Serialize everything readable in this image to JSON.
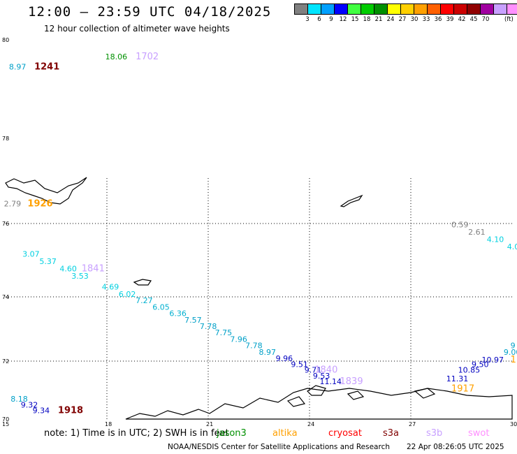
{
  "header": {
    "title": "12:00 — 23:59 UTC 04/18/2025",
    "subtitle": "12 hour collection of altimeter wave heights"
  },
  "legend": {
    "colors": [
      "#808080",
      "#00e5ff",
      "#00a0ff",
      "#0000ff",
      "#40ff40",
      "#00cc00",
      "#009000",
      "#ffff00",
      "#ffd000",
      "#ffa000",
      "#ff6000",
      "#ff0000",
      "#cc0000",
      "#900000",
      "#a000a0",
      "#c8a0ff",
      "#ff90ff",
      "#000000"
    ],
    "labels": [
      "3",
      "6",
      "9",
      "12",
      "15",
      "18",
      "21",
      "24",
      "27",
      "30",
      "33",
      "36",
      "39",
      "42",
      "45",
      "70"
    ],
    "unit": "(ft)"
  },
  "map": {
    "lat_labels": [
      "80",
      "78",
      "76",
      "74",
      "72",
      "70"
    ],
    "lon_labels": [
      "15",
      "18",
      "21",
      "24",
      "27",
      "30"
    ],
    "observations": [
      {
        "text": "8.97",
        "color": "#00a0c8",
        "lon": 15.1,
        "lat": 79.4,
        "size": 11
      },
      {
        "text": "1241",
        "color": "#800000",
        "lon": 15.85,
        "lat": 79.4,
        "size": 13,
        "bold": true
      },
      {
        "text": "18.06",
        "color": "#009000",
        "lon": 17.95,
        "lat": 79.6,
        "size": 11
      },
      {
        "text": "1702",
        "color": "#c8a0ff",
        "lon": 18.85,
        "lat": 79.6,
        "size": 13
      },
      {
        "text": "2.79",
        "color": "#808080",
        "lon": 14.95,
        "lat": 76.4,
        "size": 11
      },
      {
        "text": "1926",
        "color": "#ffa000",
        "lon": 15.65,
        "lat": 76.4,
        "size": 13,
        "bold": true
      },
      {
        "text": "0.59",
        "color": "#808080",
        "lon": 28.2,
        "lat": 75.9,
        "size": 11
      },
      {
        "text": "2.61",
        "color": "#808080",
        "lon": 28.7,
        "lat": 75.7,
        "size": 11
      },
      {
        "text": "4.10",
        "color": "#00d0e0",
        "lon": 29.25,
        "lat": 75.5,
        "size": 11
      },
      {
        "text": "4.0",
        "color": "#00d0e0",
        "lon": 29.85,
        "lat": 75.3,
        "size": 11
      },
      {
        "text": "3.07",
        "color": "#00d0e0",
        "lon": 15.5,
        "lat": 75.1,
        "size": 11
      },
      {
        "text": "5.37",
        "color": "#00d0e0",
        "lon": 16.0,
        "lat": 74.9,
        "size": 11
      },
      {
        "text": "4.60",
        "color": "#00d0e0",
        "lon": 16.6,
        "lat": 74.7,
        "size": 11
      },
      {
        "text": "1841",
        "color": "#c8a0ff",
        "lon": 17.25,
        "lat": 74.7,
        "size": 13
      },
      {
        "text": "3.53",
        "color": "#00d0e0",
        "lon": 16.95,
        "lat": 74.5,
        "size": 11
      },
      {
        "text": "4.69",
        "color": "#00d0e0",
        "lon": 17.85,
        "lat": 74.2,
        "size": 11
      },
      {
        "text": "6.02",
        "color": "#00d0e0",
        "lon": 18.35,
        "lat": 74.0,
        "size": 11
      },
      {
        "text": "7.27",
        "color": "#00b0d0",
        "lon": 18.85,
        "lat": 73.8,
        "size": 11
      },
      {
        "text": "6.05",
        "color": "#00b0d0",
        "lon": 19.35,
        "lat": 73.6,
        "size": 11
      },
      {
        "text": "6.36",
        "color": "#00b0d0",
        "lon": 19.85,
        "lat": 73.4,
        "size": 11
      },
      {
        "text": "7.57",
        "color": "#00a0c8",
        "lon": 20.3,
        "lat": 73.2,
        "size": 11
      },
      {
        "text": "7.78",
        "color": "#00a0c8",
        "lon": 20.75,
        "lat": 73.0,
        "size": 11
      },
      {
        "text": "7.75",
        "color": "#00a0c8",
        "lon": 21.2,
        "lat": 72.8,
        "size": 11
      },
      {
        "text": "7.96",
        "color": "#00a0c8",
        "lon": 21.65,
        "lat": 72.6,
        "size": 11
      },
      {
        "text": "7.78",
        "color": "#00a0c8",
        "lon": 22.1,
        "lat": 72.4,
        "size": 11
      },
      {
        "text": "8.97",
        "color": "#00a0c8",
        "lon": 22.5,
        "lat": 72.2,
        "size": 11
      },
      {
        "text": "9.96",
        "color": "#0000c0",
        "lon": 23.0,
        "lat": 72.0,
        "size": 11
      },
      {
        "text": "9.51",
        "color": "#0000c0",
        "lon": 23.45,
        "lat": 71.8,
        "size": 11
      },
      {
        "text": "9.71",
        "color": "#0000c0",
        "lon": 23.85,
        "lat": 71.6,
        "size": 11
      },
      {
        "text": "1840",
        "color": "#c8a0ff",
        "lon": 24.15,
        "lat": 71.6,
        "size": 13
      },
      {
        "text": "9.53",
        "color": "#0000c0",
        "lon": 24.1,
        "lat": 71.4,
        "size": 11
      },
      {
        "text": "11.14",
        "color": "#0000c0",
        "lon": 24.3,
        "lat": 71.2,
        "size": 11
      },
      {
        "text": "1839",
        "color": "#c8a0ff",
        "lon": 24.9,
        "lat": 71.2,
        "size": 13
      },
      {
        "text": "9",
        "color": "#00a0c8",
        "lon": 29.95,
        "lat": 72.4,
        "size": 11
      },
      {
        "text": "9.00",
        "color": "#00a0c8",
        "lon": 29.75,
        "lat": 72.2,
        "size": 11
      },
      {
        "text": "1",
        "color": "#ffa000",
        "lon": 29.95,
        "lat": 71.95,
        "size": 13
      },
      {
        "text": "10.97",
        "color": "#0000c0",
        "lon": 29.1,
        "lat": 71.95,
        "size": 11
      },
      {
        "text": "9.50",
        "color": "#0000c0",
        "lon": 28.8,
        "lat": 71.8,
        "size": 11
      },
      {
        "text": "10.85",
        "color": "#0000c0",
        "lon": 28.4,
        "lat": 71.6,
        "size": 11
      },
      {
        "text": "11.31",
        "color": "#0000c0",
        "lon": 28.05,
        "lat": 71.3,
        "size": 11
      },
      {
        "text": "1917",
        "color": "#ffa000",
        "lon": 28.2,
        "lat": 70.95,
        "size": 13
      },
      {
        "text": "8.18",
        "color": "#00a0c8",
        "lon": 15.15,
        "lat": 70.6,
        "size": 11
      },
      {
        "text": "9.32",
        "color": "#0000c0",
        "lon": 15.45,
        "lat": 70.4,
        "size": 11
      },
      {
        "text": "9.34",
        "color": "#0000c0",
        "lon": 15.8,
        "lat": 70.2,
        "size": 11
      },
      {
        "text": "1918",
        "color": "#800000",
        "lon": 16.55,
        "lat": 70.2,
        "size": 13,
        "bold": true
      }
    ]
  },
  "footer": {
    "note": "note:  1) Time is in UTC;  2) SWH is in feet",
    "satellites": [
      {
        "name": "jason3",
        "color": "#009000"
      },
      {
        "name": "altika",
        "color": "#ffa000"
      },
      {
        "name": "cryosat",
        "color": "#ff0000"
      },
      {
        "name": "s3a",
        "color": "#800000"
      },
      {
        "name": "s3b",
        "color": "#c8a0ff"
      },
      {
        "name": "swot",
        "color": "#ff90ff"
      }
    ],
    "credit": "NOAA/NESDIS Center for Satellite Applications and Research",
    "generated": "22 Apr 08:26:05 UTC 2025"
  }
}
